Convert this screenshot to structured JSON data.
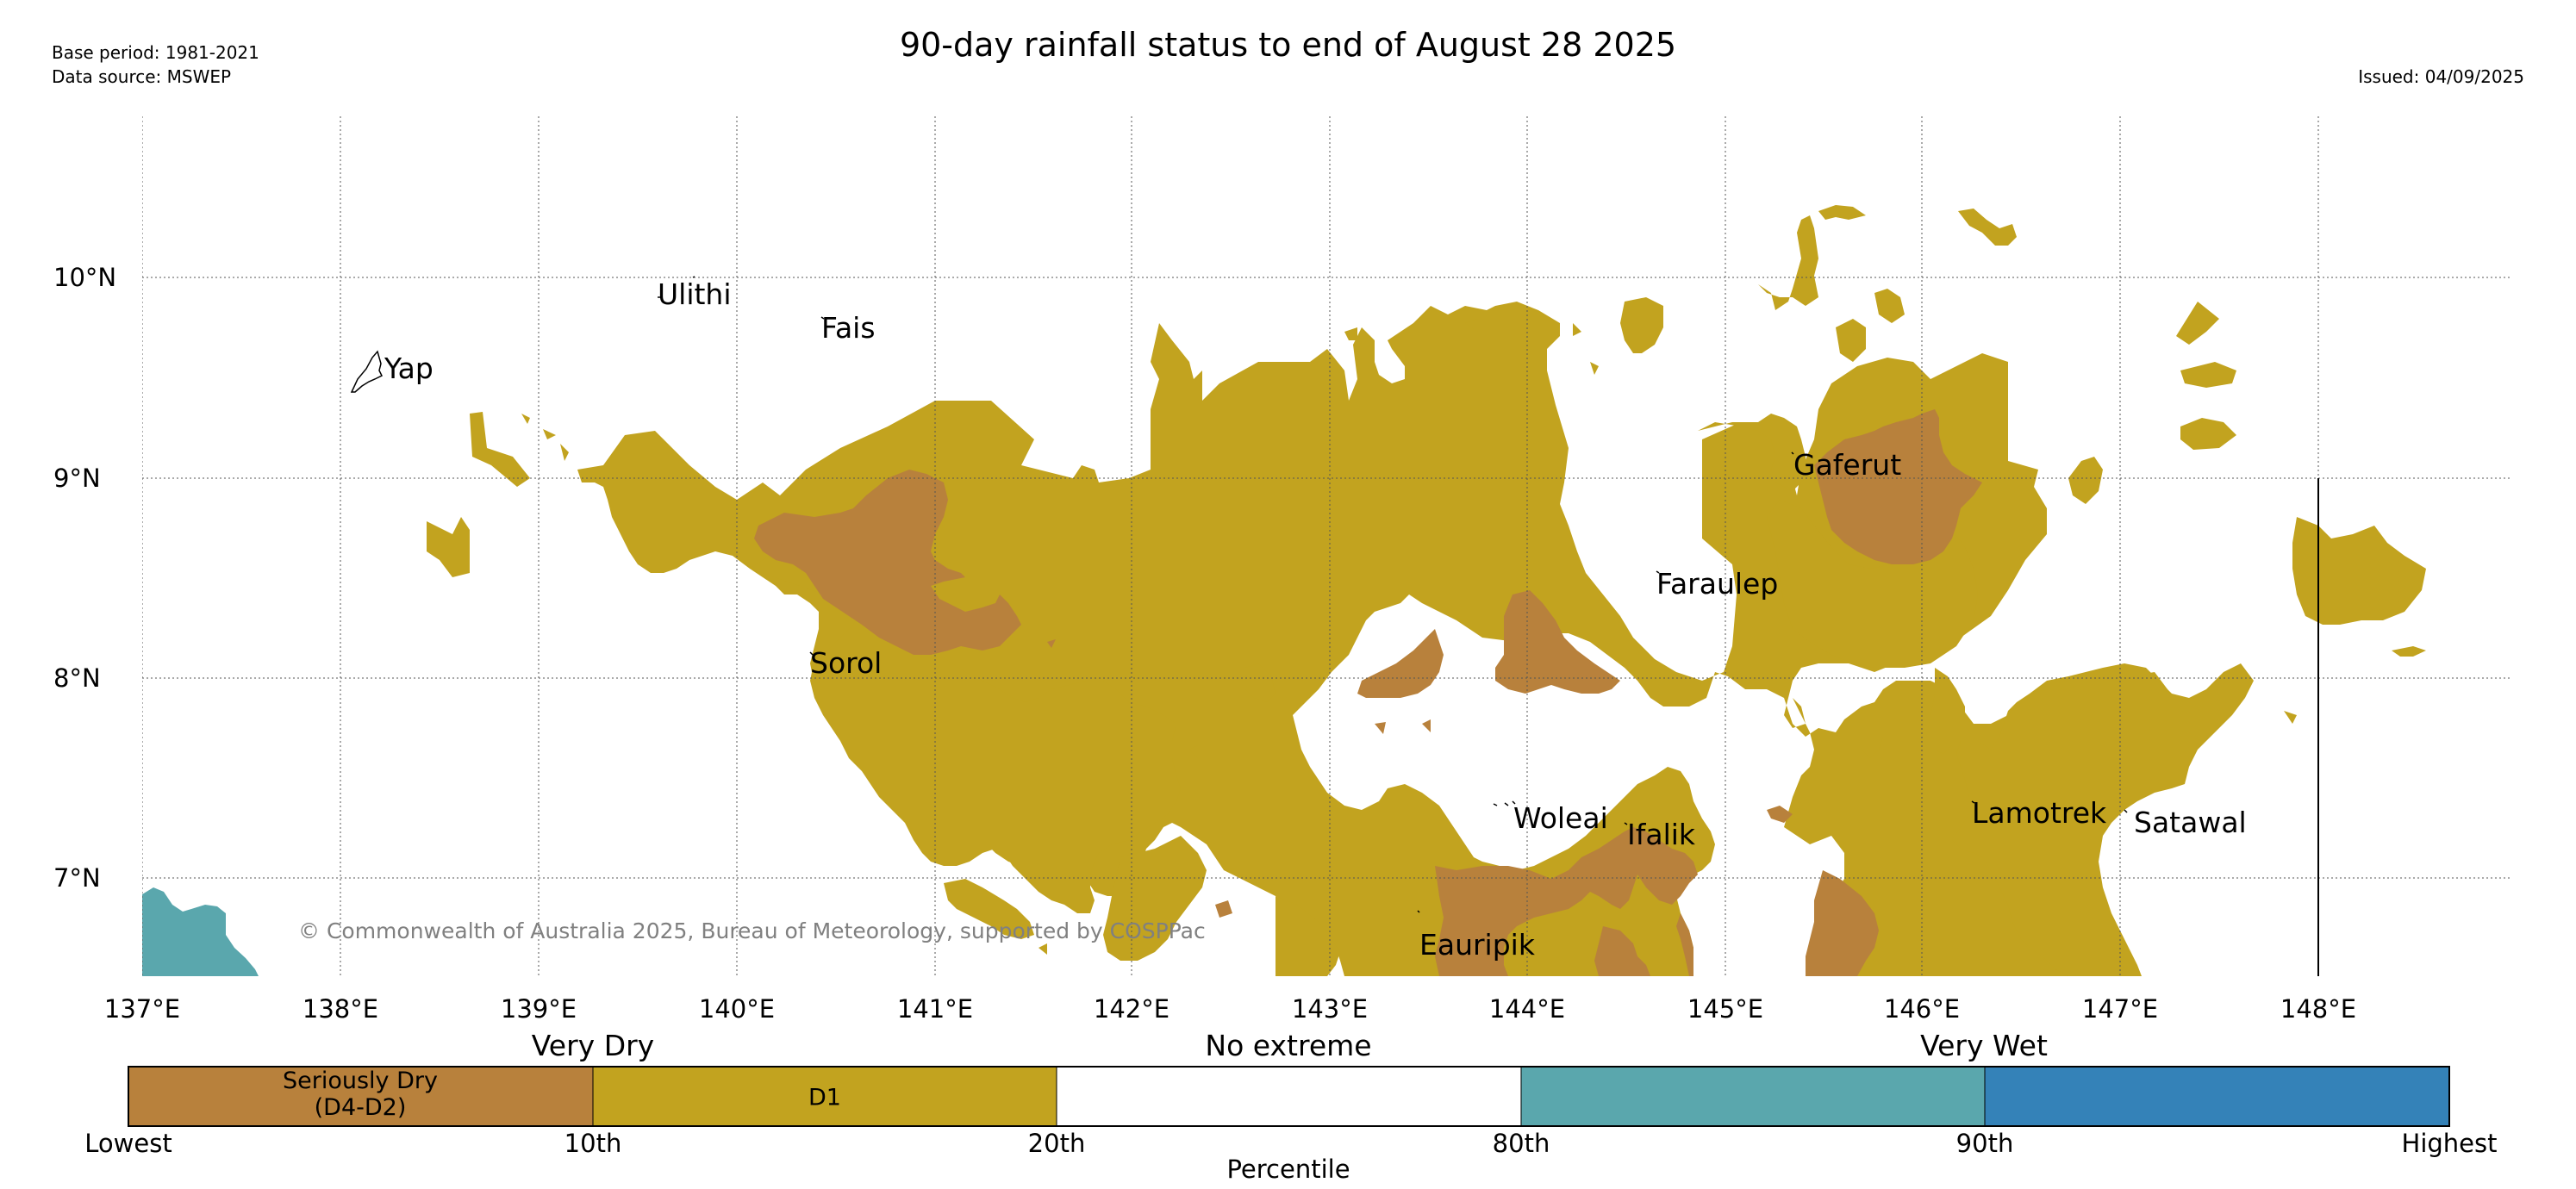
{
  "header": {
    "title": "90-day rainfall status to end of August 28 2025",
    "base_period": "Base period: 1981-2021",
    "data_source": "Data source: MSWEP",
    "issued": "Issued: 04/09/2025"
  },
  "map": {
    "lon_labels": [
      "137°E",
      "138°E",
      "139°E",
      "140°E",
      "141°E",
      "142°E",
      "143°E",
      "144°E",
      "145°E",
      "146°E",
      "147°E",
      "148°E"
    ],
    "lat_labels": [
      "10°N",
      "9°N",
      "8°N",
      "7°N"
    ],
    "places": [
      "Ulithi",
      "Fais",
      "Yap",
      "Gaferut",
      "Faraulep",
      "Sorol",
      "Woleai",
      "Ifalik",
      "Lamotrek",
      "Satawal",
      "Eauripik"
    ],
    "copyright": "© Commonwealth of Australia 2025, Bureau of Meteorology, supported by COSPPac",
    "grid": "on",
    "colors": {
      "seriously_dry": "#b8813c",
      "d1": "#c2a31f",
      "no_extreme": "#ffffff",
      "very_wet_80_90": "#5aa7ad",
      "highest_90_100": "#3482b8"
    }
  },
  "legend": {
    "categories": [
      "Very Dry",
      "No extreme",
      "Very Wet"
    ],
    "bands": [
      {
        "label_line1": "Seriously Dry",
        "label_line2": "(D4-D2)",
        "color": "#b8813c"
      },
      {
        "label_line1": "D1",
        "label_line2": "",
        "color": "#c2a31f"
      },
      {
        "label_line1": "",
        "label_line2": "",
        "color": "#ffffff"
      },
      {
        "label_line1": "",
        "label_line2": "",
        "color": "#5aa7ad"
      },
      {
        "label_line1": "",
        "label_line2": "",
        "color": "#3482b8"
      }
    ],
    "ticks": [
      "Lowest",
      "10th",
      "20th",
      "80th",
      "90th",
      "Highest"
    ],
    "xlabel": "Percentile"
  }
}
